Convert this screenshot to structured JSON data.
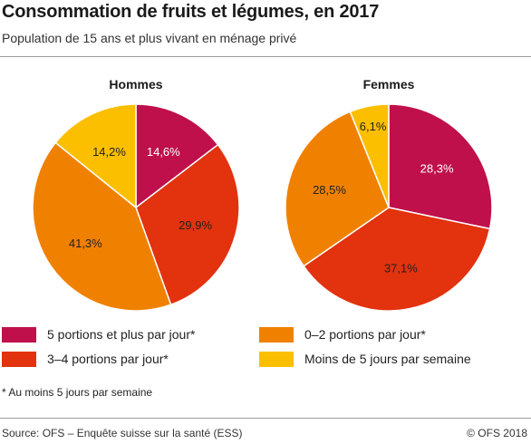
{
  "title": "Consommation de fruits et légumes, en 2017",
  "subtitle": "Population de 15 ans et plus vivant en ménage privé",
  "chart_data": [
    {
      "type": "pie",
      "title": "Hommes",
      "slices": [
        {
          "category": "5 portions et plus par jour*",
          "value": 14.6,
          "label": "14,6%"
        },
        {
          "category": "3–4 portions par jour*",
          "value": 29.9,
          "label": "29,9%"
        },
        {
          "category": "0–2 portions par jour*",
          "value": 41.3,
          "label": "41,3%"
        },
        {
          "category": "Moins de 5 jours par semaine",
          "value": 14.2,
          "label": "14,2%"
        }
      ]
    },
    {
      "type": "pie",
      "title": "Femmes",
      "slices": [
        {
          "category": "5 portions et plus par jour*",
          "value": 28.3,
          "label": "28,3%"
        },
        {
          "category": "3–4 portions par jour*",
          "value": 37.1,
          "label": "37,1%"
        },
        {
          "category": "0–2 portions par jour*",
          "value": 28.5,
          "label": "28,5%"
        },
        {
          "category": "Moins de 5 jours par semaine",
          "value": 6.1,
          "label": "6,1%"
        }
      ]
    }
  ],
  "legend": [
    {
      "label": "5 portions et plus par jour*",
      "color": "#c0104c"
    },
    {
      "label": "3–4 portions par jour*",
      "color": "#e2320e"
    },
    {
      "label": "0–2 portions par jour*",
      "color": "#f08100"
    },
    {
      "label": "Moins de 5 jours par semaine",
      "color": "#fbbf00"
    }
  ],
  "footnote": "* Au moins 5 jours par semaine",
  "source": "Source: OFS – Enquête suisse sur la santé (ESS)",
  "copyright": "© OFS 2018"
}
